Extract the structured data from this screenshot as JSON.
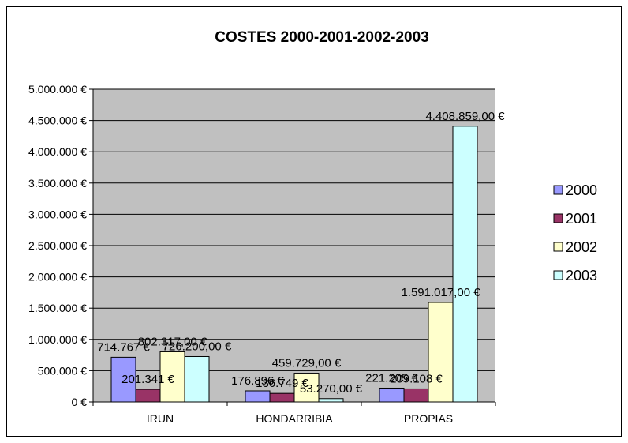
{
  "chart_data": {
    "type": "bar",
    "title": "COSTES 2000-2001-2002-2003",
    "xlabel": "",
    "ylabel": "",
    "categories": [
      "IRUN",
      "HONDARRIBIA",
      "PROPIAS"
    ],
    "ylim": [
      0,
      5000000
    ],
    "yticks": [
      0,
      500000,
      1000000,
      1500000,
      2000000,
      2500000,
      3000000,
      3500000,
      4000000,
      4500000,
      5000000
    ],
    "ytick_labels": [
      "0 €",
      "500.000 €",
      "1.000.000 €",
      "1.500.000 €",
      "2.000.000 €",
      "2.500.000 €",
      "3.000.000 €",
      "3.500.000 €",
      "4.000.000 €",
      "4.500.000 €",
      "5.000.000 €"
    ],
    "grid": true,
    "legend_position": "right",
    "plot_background": "#c0c0c0",
    "series": [
      {
        "name": "2000",
        "color": "#9999ff",
        "values": [
          714767,
          176896,
          221205
        ],
        "labels": [
          "714.767 €",
          "176.896 €",
          "221.205 €"
        ]
      },
      {
        "name": "2001",
        "color": "#993366",
        "values": [
          201341,
          136749,
          209108
        ],
        "labels": [
          "201.341 €",
          "136.749 €",
          "209.108 €"
        ]
      },
      {
        "name": "2002",
        "color": "#ffffcc",
        "values": [
          802317,
          459729,
          1591017
        ],
        "labels": [
          "802.317,00 €",
          "459.729,00 €",
          "1.591.017,00 €"
        ]
      },
      {
        "name": "2003",
        "color": "#ccffff",
        "values": [
          726200,
          53270,
          4408859
        ],
        "labels": [
          "726.200,00 €",
          "53.270,00 €",
          "4.408.859,00 €"
        ]
      }
    ]
  }
}
